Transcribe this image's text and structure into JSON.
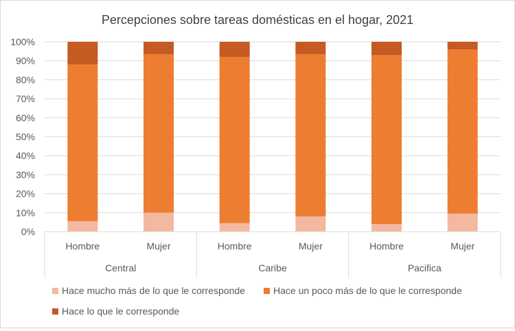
{
  "chart_data": {
    "type": "bar",
    "stacked": true,
    "percent": true,
    "title": "Percepciones sobre tareas domésticas en el hogar, 2021",
    "ylim": [
      0,
      100
    ],
    "yticks": [
      "0%",
      "10%",
      "20%",
      "30%",
      "40%",
      "50%",
      "60%",
      "70%",
      "80%",
      "90%",
      "100%"
    ],
    "groups": [
      "Central",
      "Caribe",
      "Pacifica"
    ],
    "categories": [
      "Hombre",
      "Mujer",
      "Hombre",
      "Mujer",
      "Hombre",
      "Mujer"
    ],
    "series": [
      {
        "name": "Hace mucho más de lo que le corresponde",
        "color": "#f4b8a0",
        "values": [
          5.5,
          10,
          4.5,
          8,
          4,
          9.5
        ]
      },
      {
        "name": "Hace un poco más de lo que le corresponde",
        "color": "#ed7d31",
        "values": [
          82.5,
          83.5,
          87.5,
          85.5,
          89,
          86.5
        ]
      },
      {
        "name": "Hace lo que le corresponde",
        "color": "#c55a22",
        "values": [
          12,
          6.5,
          8,
          6.5,
          7,
          4
        ]
      }
    ],
    "grid": true,
    "legend": "bottom"
  }
}
